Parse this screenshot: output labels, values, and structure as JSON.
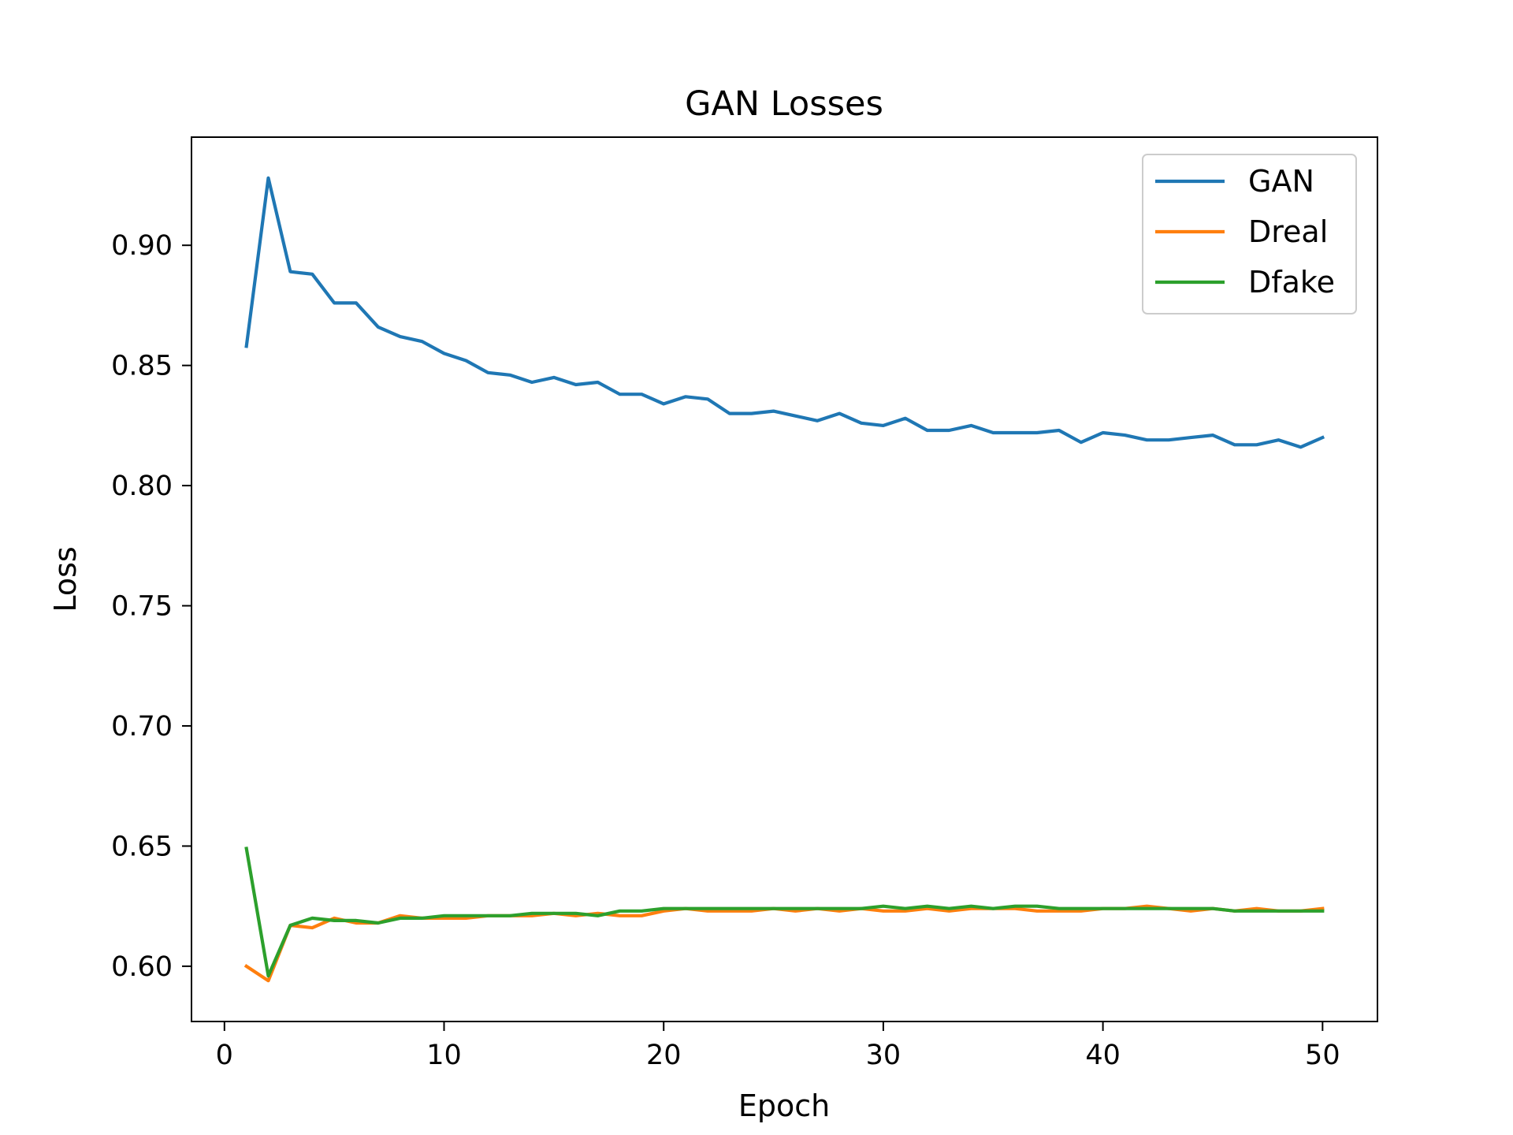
{
  "chart_data": {
    "type": "line",
    "title": "GAN Losses",
    "xlabel": "Epoch",
    "ylabel": "Loss",
    "xlim": [
      -1.5,
      52.5
    ],
    "ylim": [
      0.577,
      0.945
    ],
    "xticks": [
      0,
      10,
      20,
      30,
      40,
      50
    ],
    "yticks": [
      0.6,
      0.65,
      0.7,
      0.75,
      0.8,
      0.85,
      0.9
    ],
    "xtick_labels": [
      "0",
      "10",
      "20",
      "30",
      "40",
      "50"
    ],
    "ytick_labels": [
      "0.60",
      "0.65",
      "0.70",
      "0.75",
      "0.80",
      "0.85",
      "0.90"
    ],
    "grid": false,
    "legend_position": "top-right",
    "x": [
      1,
      2,
      3,
      4,
      5,
      6,
      7,
      8,
      9,
      10,
      11,
      12,
      13,
      14,
      15,
      16,
      17,
      18,
      19,
      20,
      21,
      22,
      23,
      24,
      25,
      26,
      27,
      28,
      29,
      30,
      31,
      32,
      33,
      34,
      35,
      36,
      37,
      38,
      39,
      40,
      41,
      42,
      43,
      44,
      45,
      46,
      47,
      48,
      49,
      50
    ],
    "series": [
      {
        "name": "GAN",
        "color": "#1f77b4",
        "values": [
          0.858,
          0.928,
          0.889,
          0.888,
          0.876,
          0.876,
          0.866,
          0.862,
          0.86,
          0.855,
          0.852,
          0.847,
          0.846,
          0.843,
          0.845,
          0.842,
          0.843,
          0.838,
          0.838,
          0.834,
          0.837,
          0.836,
          0.83,
          0.83,
          0.831,
          0.829,
          0.827,
          0.83,
          0.826,
          0.825,
          0.828,
          0.823,
          0.823,
          0.825,
          0.822,
          0.822,
          0.822,
          0.823,
          0.818,
          0.822,
          0.821,
          0.819,
          0.819,
          0.82,
          0.821,
          0.817,
          0.817,
          0.819,
          0.816,
          0.82
        ]
      },
      {
        "name": "Dreal",
        "color": "#ff7f0e",
        "values": [
          0.6,
          0.594,
          0.617,
          0.616,
          0.62,
          0.618,
          0.618,
          0.621,
          0.62,
          0.62,
          0.62,
          0.621,
          0.621,
          0.621,
          0.622,
          0.621,
          0.622,
          0.621,
          0.621,
          0.623,
          0.624,
          0.623,
          0.623,
          0.623,
          0.624,
          0.623,
          0.624,
          0.623,
          0.624,
          0.623,
          0.623,
          0.624,
          0.623,
          0.624,
          0.624,
          0.624,
          0.623,
          0.623,
          0.623,
          0.624,
          0.624,
          0.625,
          0.624,
          0.623,
          0.624,
          0.623,
          0.624,
          0.623,
          0.623,
          0.624
        ]
      },
      {
        "name": "Dfake",
        "color": "#2ca02c",
        "values": [
          0.649,
          0.596,
          0.617,
          0.62,
          0.619,
          0.619,
          0.618,
          0.62,
          0.62,
          0.621,
          0.621,
          0.621,
          0.621,
          0.622,
          0.622,
          0.622,
          0.621,
          0.623,
          0.623,
          0.624,
          0.624,
          0.624,
          0.624,
          0.624,
          0.624,
          0.624,
          0.624,
          0.624,
          0.624,
          0.625,
          0.624,
          0.625,
          0.624,
          0.625,
          0.624,
          0.625,
          0.625,
          0.624,
          0.624,
          0.624,
          0.624,
          0.624,
          0.624,
          0.624,
          0.624,
          0.623,
          0.623,
          0.623,
          0.623,
          0.623
        ]
      }
    ]
  }
}
